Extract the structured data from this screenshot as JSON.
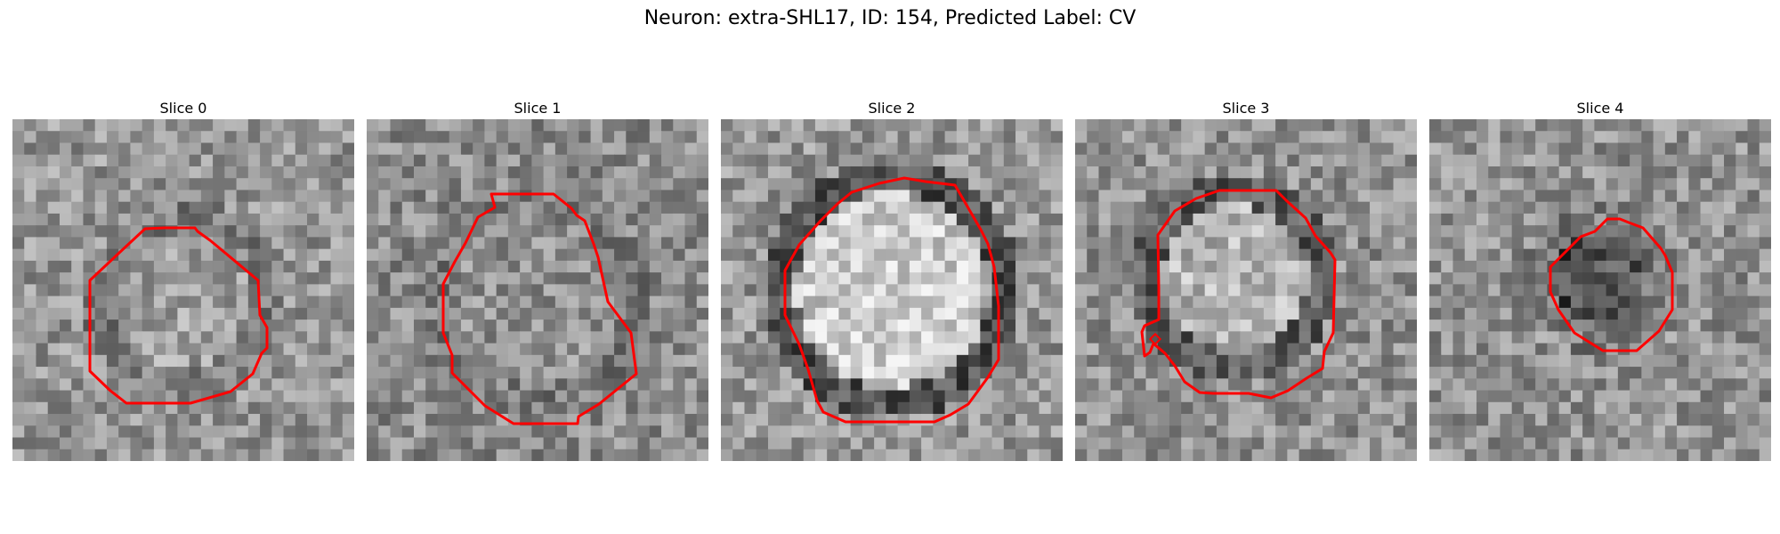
{
  "figure": {
    "title": "Neuron: extra-SHL17, ID: 154, Predicted Label: CV"
  },
  "panels": [
    {
      "title": "Slice 0",
      "mask_color": "#ff0000"
    },
    {
      "title": "Slice 1",
      "mask_color": "#ff0000"
    },
    {
      "title": "Slice 2",
      "mask_color": "#ff0000"
    },
    {
      "title": "Slice 3",
      "mask_color": "#ff0000"
    },
    {
      "title": "Slice 4",
      "mask_color": "#ff0000"
    }
  ]
}
